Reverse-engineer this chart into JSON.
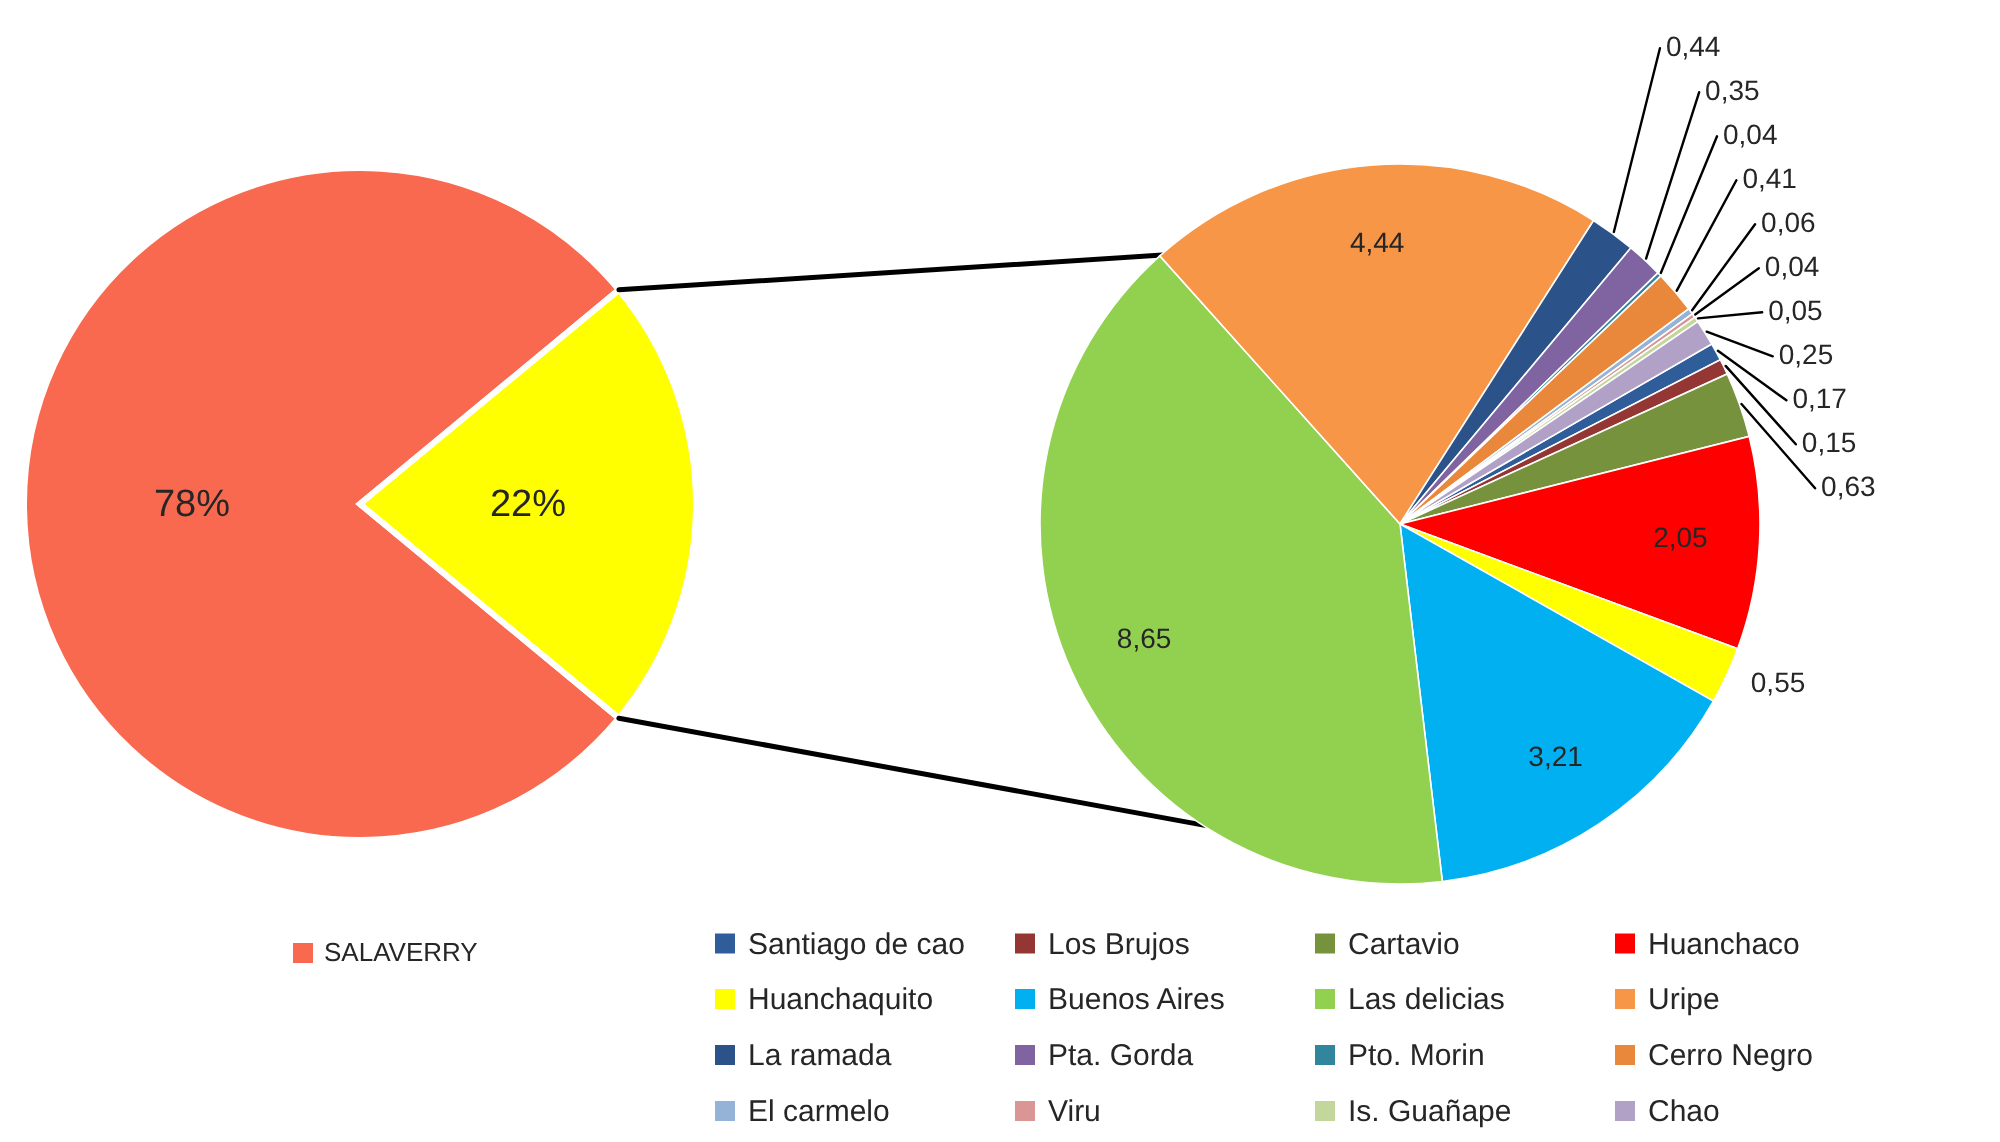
{
  "chart_data": [
    {
      "type": "pie",
      "categories": [
        "SALAVERRY",
        null
      ],
      "values": [
        78,
        22
      ],
      "colors": [
        "#f8694f",
        "#ffff00"
      ],
      "value_labels": [
        "78%",
        "22%"
      ],
      "legend": "bottom"
    },
    {
      "type": "pie",
      "categories": [
        "Santiago de cao",
        "Los Brujos",
        "Cartavio",
        "Huanchaco",
        "Huanchaquito",
        "Buenos Aires",
        "Las delicias",
        "Uripe",
        "La ramada",
        "Pta. Gorda",
        "Pto. Morin",
        "Cerro Negro",
        "El carmelo",
        "Viru",
        "Is. Guañape",
        "Chao"
      ],
      "values": [
        0.17,
        0.15,
        0.63,
        2.05,
        0.55,
        3.21,
        8.65,
        4.44,
        0.44,
        0.35,
        0.04,
        0.41,
        0.06,
        0.04,
        0.05,
        0.25
      ],
      "colors": [
        "#2e5d9a",
        "#943634",
        "#76923c",
        "#ff0000",
        "#ffff00",
        "#00b0f0",
        "#92d050",
        "#f79646",
        "#2b5389",
        "#8064a2",
        "#31859c",
        "#e9883a",
        "#95b3d7",
        "#d99694",
        "#c3d69b",
        "#b2a1c7"
      ],
      "value_labels": [
        "0,17",
        "0,15",
        "0,63",
        "2,05",
        "0,55",
        "3,21",
        "8,65",
        "4,44",
        "0,44",
        "0,35",
        "0,04",
        "0,41",
        "0,06",
        "0,04",
        "0,05",
        "0,25"
      ],
      "legend": "bottom"
    }
  ]
}
